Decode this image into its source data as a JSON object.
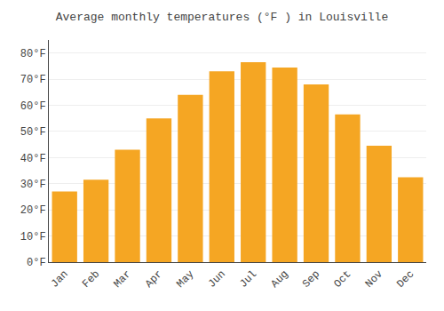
{
  "chart_data": {
    "type": "bar",
    "title": "Average monthly temperatures (°F ) in Louisville",
    "categories": [
      "Jan",
      "Feb",
      "Mar",
      "Apr",
      "May",
      "Jun",
      "Jul",
      "Aug",
      "Sep",
      "Oct",
      "Nov",
      "Dec"
    ],
    "values": [
      27,
      31.5,
      43,
      55,
      64,
      73,
      76.5,
      74.5,
      68,
      56.5,
      44.5,
      32.5
    ],
    "color": "#F5A623",
    "ylim": [
      0,
      85
    ],
    "yticks": [
      {
        "value": 0,
        "label": "0°F"
      },
      {
        "value": 10,
        "label": "10°F"
      },
      {
        "value": 20,
        "label": "20°F"
      },
      {
        "value": 30,
        "label": "30°F"
      },
      {
        "value": 40,
        "label": "40°F"
      },
      {
        "value": 50,
        "label": "50°F"
      },
      {
        "value": 60,
        "label": "60°F"
      },
      {
        "value": 70,
        "label": "70°F"
      },
      {
        "value": 80,
        "label": "80°F"
      }
    ],
    "grid": true
  }
}
